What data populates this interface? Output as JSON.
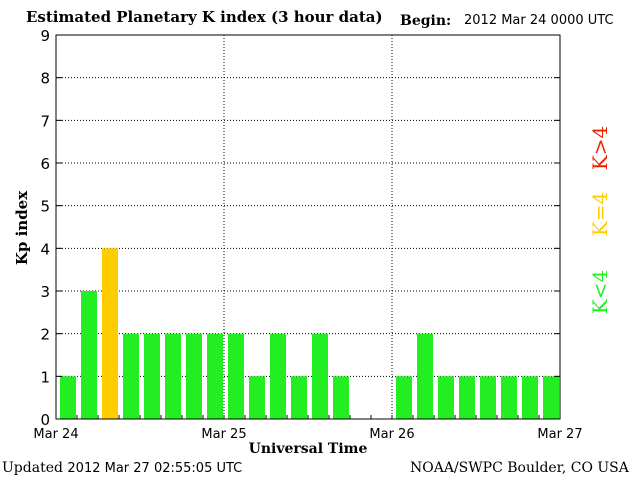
{
  "header": {
    "title": "Estimated Planetary K index (3 hour data)",
    "begin_label": "Begin:",
    "begin_value": "2012 Mar 24 0000 UTC"
  },
  "footer": {
    "updated_label": "Updated",
    "updated_value": "2012 Mar 27 02:55:05 UTC",
    "source": "NOAA/SWPC Boulder, CO USA"
  },
  "legend": [
    {
      "label": "K<4",
      "color": "#22ee22"
    },
    {
      "label": "K=4",
      "color": "#ffcc00"
    },
    {
      "label": "K>4",
      "color": "#ee2200"
    }
  ],
  "chart_data": {
    "type": "bar",
    "title": "Estimated Planetary K index (3 hour data)",
    "xlabel": "Universal Time",
    "ylabel": "Kp index",
    "ylim": [
      0,
      9
    ],
    "yticks": [
      0,
      1,
      2,
      3,
      4,
      5,
      6,
      7,
      8,
      9
    ],
    "x_tick_labels": [
      "Mar 24",
      "Mar 25",
      "Mar 26",
      "Mar 27"
    ],
    "slots_per_day": 8,
    "grid": true,
    "values": [
      1,
      3,
      4,
      2,
      2,
      2,
      2,
      2,
      2,
      1,
      2,
      1,
      2,
      1,
      null,
      null,
      1,
      2,
      1,
      1,
      1,
      1,
      1,
      1
    ],
    "colors": {
      "below": "#22ee22",
      "equal": "#ffcc00",
      "above": "#ee2200"
    }
  }
}
